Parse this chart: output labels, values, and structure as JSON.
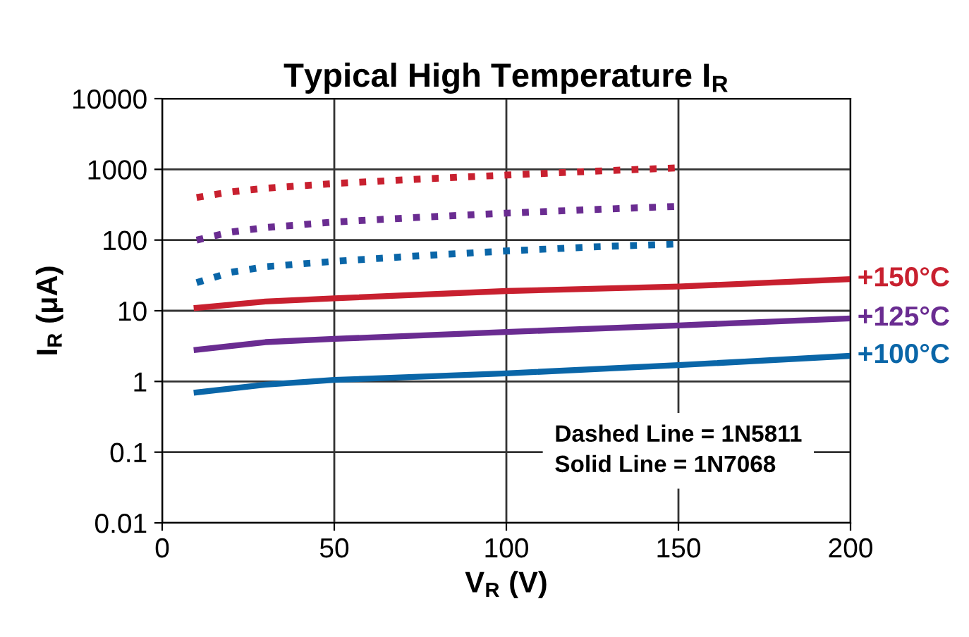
{
  "chart_data": {
    "type": "line",
    "title": "Typical High Temperature I$_{R}$",
    "xlabel": "V$_{R}$ (V)",
    "ylabel": "I$_{R}$ (μA)",
    "log": "y",
    "xlim": [
      0,
      200
    ],
    "xticks": [
      0,
      50,
      100,
      150,
      200
    ],
    "ylim": [
      0.01,
      10000
    ],
    "yticks": [
      0.01,
      0.1,
      1,
      10,
      100,
      1000,
      10000
    ],
    "grid": true,
    "annotations": [
      "Dashed Line = 1N5811\nSolid Line = 1N7068"
    ],
    "series": [
      {
        "color": "#c8202f",
        "line_style": "dotted",
        "x": [
          10,
          20,
          30,
          50,
          75,
          100,
          125,
          150
        ],
        "values": [
          400,
          480,
          540,
          630,
          730,
          830,
          940,
          1050
        ]
      },
      {
        "color": "#6a2c91",
        "line_style": "dotted",
        "x": [
          10,
          20,
          30,
          50,
          75,
          100,
          125,
          150
        ],
        "values": [
          100,
          130,
          150,
          180,
          210,
          240,
          270,
          300
        ]
      },
      {
        "color": "#0a66a8",
        "line_style": "dotted",
        "x": [
          10,
          20,
          30,
          50,
          75,
          100,
          125,
          150
        ],
        "values": [
          25,
          35,
          42,
          50,
          60,
          70,
          80,
          88
        ]
      },
      {
        "name": "+150°C",
        "color": "#c8202f",
        "line_style": "solid",
        "x": [
          10,
          30,
          50,
          100,
          150,
          200
        ],
        "values": [
          11,
          13.5,
          15,
          19,
          22,
          28
        ]
      },
      {
        "name": "+125°C",
        "color": "#6a2c91",
        "line_style": "solid",
        "x": [
          10,
          30,
          50,
          100,
          150,
          200
        ],
        "values": [
          2.8,
          3.6,
          4.0,
          5.0,
          6.2,
          7.8
        ]
      },
      {
        "name": "+100°C",
        "color": "#0a66a8",
        "line_style": "solid",
        "x": [
          10,
          30,
          50,
          100,
          150,
          200
        ],
        "values": [
          0.7,
          0.9,
          1.05,
          1.3,
          1.7,
          2.3
        ]
      }
    ]
  }
}
